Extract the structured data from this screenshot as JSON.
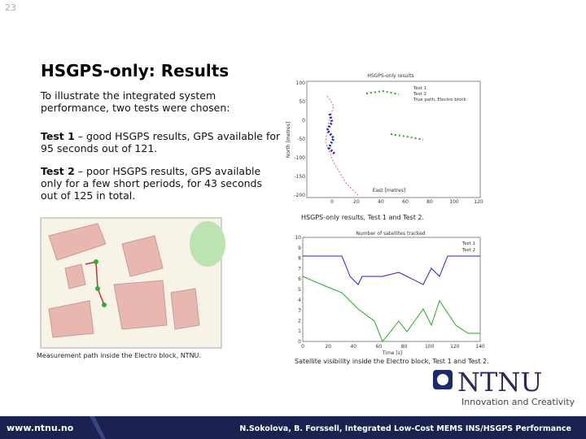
{
  "page_number": "23",
  "title": "HSGPS-only: Results",
  "intro": "To illustrate the integrated system performance, two tests were chosen:",
  "tests": [
    {
      "label": "Test 1",
      "text": " – good HSGPS results, GPS available for 95 seconds out of 121."
    },
    {
      "label": "Test 2",
      "text": " – poor HSGPS results, GPS available only for a few short periods, for 43 seconds out of 125 in total."
    }
  ],
  "plot1": {
    "title": "HSGPS-only results",
    "legend": [
      "Test 1",
      "Test 2",
      "True path, Electro block"
    ],
    "xlabel": "East [metres]",
    "ylabel": "North [metres]",
    "xticks": [
      "0",
      "20",
      "40",
      "60",
      "80",
      "100",
      "120"
    ],
    "yticks": [
      "100",
      "50",
      "0",
      "-50",
      "-100",
      "-150",
      "-200"
    ],
    "caption": "HSGPS-only results, Test 1 and Test 2."
  },
  "map": {
    "caption": "Measurement path inside the Electro block, NTNU."
  },
  "plot2": {
    "title": "Number of satellites tracked",
    "legend": [
      "Test 1",
      "Test 2"
    ],
    "xlabel": "Time [s]",
    "xticks": [
      "0",
      "20",
      "40",
      "60",
      "80",
      "100",
      "120",
      "140"
    ],
    "yticks": [
      "0",
      "1",
      "2",
      "3",
      "4",
      "5",
      "6",
      "7",
      "8",
      "9",
      "10"
    ],
    "caption": "Satellite visibility inside the Electro block, Test 1 and Test 2."
  },
  "logo": {
    "name": "NTNU",
    "tagline": "Innovation and Creativity"
  },
  "footer": {
    "url": "www.ntnu.no",
    "text": "N.Sokolova, B. Forssell, Integrated Low-Cost MEMS INS/HSGPS Performance"
  }
}
